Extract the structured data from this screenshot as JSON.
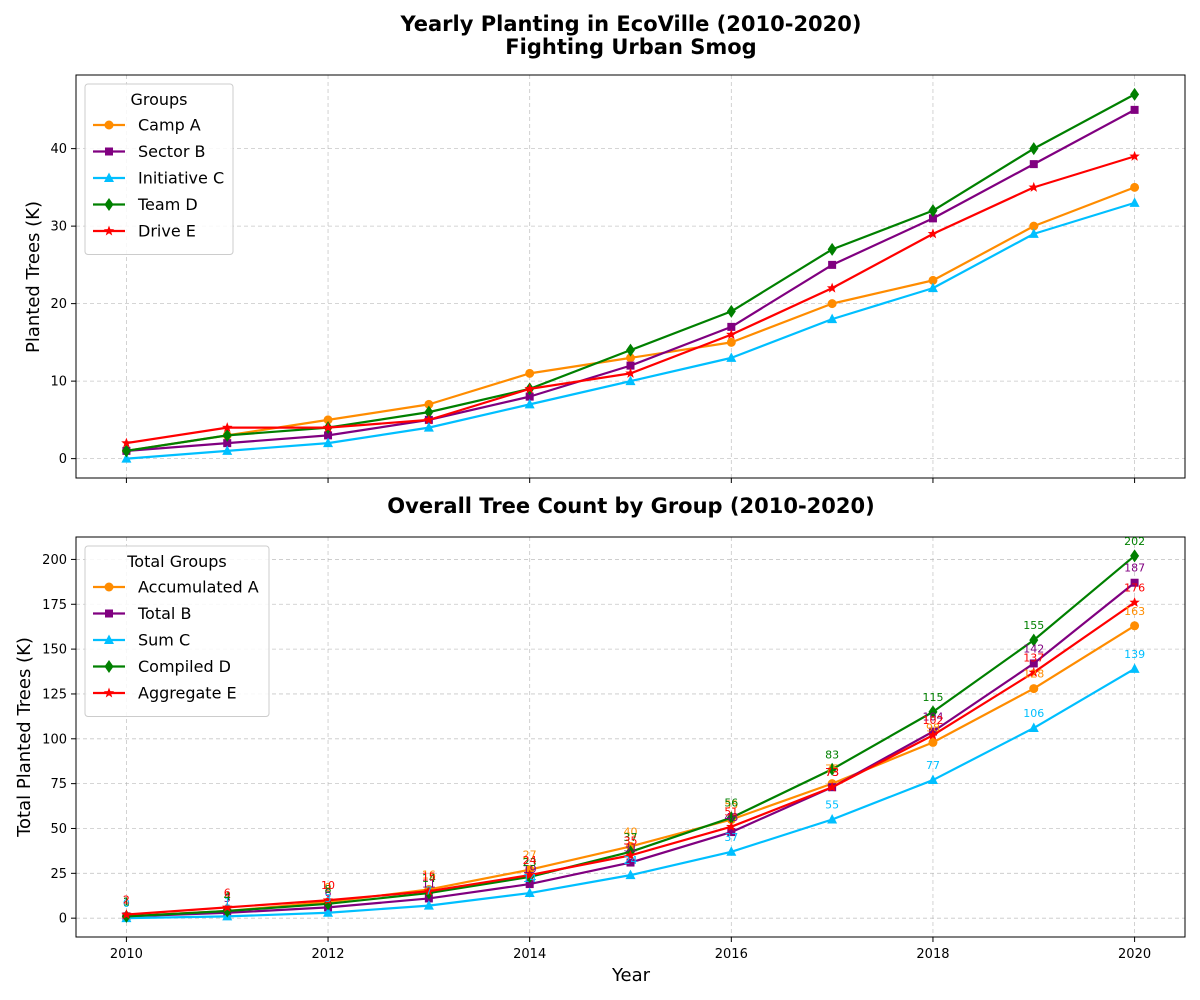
{
  "chart_data": [
    {
      "type": "line",
      "title": "Yearly Planting in EcoVille (2010-2020)",
      "subtitle": "Fighting Urban Smog",
      "xlabel": "",
      "ylabel": "Planted Trees (K)",
      "x": [
        2010,
        2011,
        2012,
        2013,
        2014,
        2015,
        2016,
        2017,
        2018,
        2019,
        2020
      ],
      "xticks": [
        "2010",
        "2012",
        "2014",
        "2016",
        "2018",
        "2020"
      ],
      "xticks_visible": false,
      "ylim": [
        -2.5,
        49.5
      ],
      "yticks": [
        0,
        10,
        20,
        30,
        40
      ],
      "grid": true,
      "legend_title": "Groups",
      "legend_position": "top-left",
      "series": [
        {
          "name": "Camp A",
          "color": "#ff8c00",
          "marker": "circle",
          "values": [
            1,
            3,
            5,
            7,
            11,
            13,
            15,
            20,
            23,
            30,
            35
          ]
        },
        {
          "name": "Sector B",
          "color": "#800080",
          "marker": "square",
          "values": [
            1,
            2,
            3,
            5,
            8,
            12,
            17,
            25,
            31,
            38,
            45
          ]
        },
        {
          "name": "Initiative C",
          "color": "#00bfff",
          "marker": "triangle",
          "values": [
            0,
            1,
            2,
            4,
            7,
            10,
            13,
            18,
            22,
            29,
            33
          ]
        },
        {
          "name": "Team D",
          "color": "#008000",
          "marker": "diamond",
          "values": [
            1,
            3,
            4,
            6,
            9,
            14,
            19,
            27,
            32,
            40,
            47
          ]
        },
        {
          "name": "Drive E",
          "color": "#ff0000",
          "marker": "star",
          "values": [
            2,
            4,
            4,
            5,
            9,
            11,
            16,
            22,
            29,
            35,
            39
          ]
        }
      ]
    },
    {
      "type": "line",
      "title": "Overall Tree Count by Group (2010-2020)",
      "xlabel": "Year",
      "ylabel": "Total Planted Trees (K)",
      "x": [
        2010,
        2011,
        2012,
        2013,
        2014,
        2015,
        2016,
        2017,
        2018,
        2019,
        2020
      ],
      "xticks": [
        "2010",
        "2012",
        "2014",
        "2016",
        "2018",
        "2020"
      ],
      "xticks_visible": true,
      "ylim": [
        -10.5,
        212.5
      ],
      "yticks": [
        0,
        25,
        50,
        75,
        100,
        125,
        150,
        175,
        200
      ],
      "grid": true,
      "legend_title": "Total Groups",
      "legend_position": "top-left",
      "data_labels": true,
      "series": [
        {
          "name": "Accumulated A",
          "color": "#ff8c00",
          "marker": "circle",
          "values": [
            1,
            4,
            9,
            16,
            27,
            40,
            55,
            75,
            98,
            128,
            163
          ]
        },
        {
          "name": "Total B",
          "color": "#800080",
          "marker": "square",
          "values": [
            1,
            3,
            6,
            11,
            19,
            31,
            48,
            73,
            104,
            142,
            187
          ]
        },
        {
          "name": "Sum C",
          "color": "#00bfff",
          "marker": "triangle",
          "values": [
            0,
            1,
            3,
            7,
            14,
            24,
            37,
            55,
            77,
            106,
            139
          ]
        },
        {
          "name": "Compiled D",
          "color": "#008000",
          "marker": "diamond",
          "values": [
            1,
            4,
            8,
            14,
            23,
            37,
            56,
            83,
            115,
            155,
            202
          ]
        },
        {
          "name": "Aggregate E",
          "color": "#ff0000",
          "marker": "star",
          "values": [
            2,
            6,
            10,
            15,
            24,
            35,
            51,
            73,
            102,
            137,
            176
          ]
        }
      ]
    }
  ]
}
